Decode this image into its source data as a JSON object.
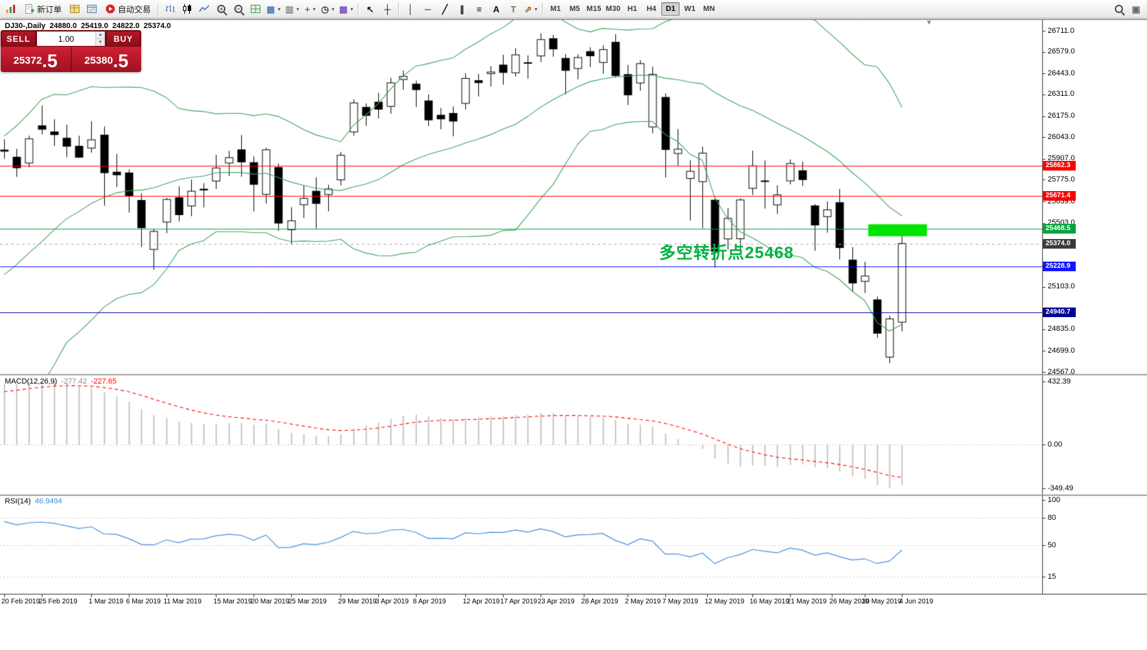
{
  "toolbar": {
    "timeframes": [
      "M1",
      "M5",
      "M15",
      "M30",
      "H1",
      "H4",
      "D1",
      "W1",
      "MN"
    ],
    "active_timeframe": "D1",
    "items": [
      {
        "t": "logo",
        "n": "terminal-logo-icon"
      },
      {
        "t": "labeled",
        "n": "new-order-button",
        "sv": "neworder",
        "l": "新订单"
      },
      {
        "t": "svg",
        "n": "market-watch-icon",
        "sv": "mw"
      },
      {
        "t": "svg",
        "n": "data-window-icon",
        "sv": "dw"
      },
      {
        "t": "labeled",
        "n": "autotrading-button",
        "sv": "auto",
        "l": "自动交易"
      },
      {
        "t": "sep"
      },
      {
        "t": "svg",
        "n": "bar-chart-mode-icon",
        "sv": "bars"
      },
      {
        "t": "svg",
        "n": "candlestick-mode-icon",
        "sv": "candles"
      },
      {
        "t": "svg",
        "n": "line-chart-mode-icon",
        "sv": "line"
      },
      {
        "t": "mag",
        "n": "zoom-in-button",
        "s": "+"
      },
      {
        "t": "mag",
        "n": "zoom-out-button",
        "s": "−"
      },
      {
        "t": "svg",
        "n": "tile-windows-icon",
        "sv": "grid"
      },
      {
        "t": "icon",
        "n": "new-chart-button",
        "g": "▦",
        "c": "#4f81bd",
        "dd": 1
      },
      {
        "t": "icon",
        "n": "profiles-button",
        "g": "▥",
        "c": "#8a8a8a",
        "dd": 1
      },
      {
        "t": "icon",
        "n": "indicators-button",
        "g": "+",
        "c": "#1f9d3a",
        "dd": 1
      },
      {
        "t": "icon",
        "n": "periods-button",
        "g": "◷",
        "c": "#3a3a3a",
        "dd": 1
      },
      {
        "t": "icon",
        "n": "templates-button",
        "g": "▩",
        "c": "#7e57c2",
        "dd": 1
      },
      {
        "t": "sep"
      },
      {
        "t": "icon",
        "n": "cursor-button",
        "g": "↖",
        "c": "#111111"
      },
      {
        "t": "icon",
        "n": "crosshair-button",
        "g": "┼",
        "c": "#111111"
      },
      {
        "t": "sep"
      },
      {
        "t": "icon",
        "n": "vertical-line-button",
        "g": "│",
        "c": "#111111"
      },
      {
        "t": "icon",
        "n": "horizontal-line-button",
        "g": "─",
        "c": "#111111"
      },
      {
        "t": "icon",
        "n": "trendline-button",
        "g": "╱",
        "c": "#111111"
      },
      {
        "t": "icon",
        "n": "equidistant-channel-button",
        "g": "∥",
        "c": "#111111"
      },
      {
        "t": "icon",
        "n": "fibonacci-button",
        "g": "≡",
        "c": "#111111"
      },
      {
        "t": "icon",
        "n": "text-button",
        "g": "A",
        "c": "#111111"
      },
      {
        "t": "icon",
        "n": "text-label-button",
        "g": "T",
        "c": "#777777"
      },
      {
        "t": "icon",
        "n": "arrows-button",
        "g": "⇗",
        "c": "#a8671f",
        "dd": 1
      },
      {
        "t": "sep"
      },
      {
        "t": "tfgroup"
      },
      {
        "t": "spacer"
      },
      {
        "t": "mag",
        "n": "search-icon",
        "s": ""
      },
      {
        "t": "icon",
        "n": "sidebar-toggle-icon",
        "g": "▣",
        "c": "#666666"
      }
    ]
  },
  "chart": {
    "symbol": "DJ30-,Daily",
    "open": "24880.0",
    "high": "25419.0",
    "low": "24822.0",
    "close": "25374.0"
  },
  "trade_panel": {
    "sell_label": "SELL",
    "buy_label": "BUY",
    "volume": "1.00",
    "sell_price": {
      "main": "25372",
      "frac": ".5"
    },
    "buy_price": {
      "main": "25380",
      "frac": ".5"
    },
    "colors": {
      "header": "#b01825",
      "header_dark": "#8a0e19",
      "price_bg": "#d01f33",
      "price_bg_dark": "#a01221"
    }
  },
  "annotation": {
    "text": "多空转折点25468",
    "color": "#00b044"
  },
  "icons": {
    "shift_marker": "▼",
    "spinner_up": "▲",
    "spinner_down": "▼"
  },
  "macd_panel": {
    "name": "MACD(12,26,9)",
    "value_macd": "-277.42",
    "value_signal": "-227.65"
  },
  "rsi_panel": {
    "name": "RSI(14)",
    "value": "46.9494"
  },
  "chart_data": {
    "type": "candlestick",
    "symbol": "DJ30-",
    "timeframe": "Daily",
    "price_range": [
      24567,
      26711
    ],
    "price_ticks": [
      "26711.0",
      "26579.0",
      "26443.0",
      "26311.0",
      "26175.0",
      "26043.0",
      "25907.0",
      "25775.0",
      "25639.0",
      "25503.0",
      "25103.0",
      "24835.0",
      "24699.0",
      "24567.0"
    ],
    "macd_ticks": [
      "432.39",
      "0.00",
      "-349.49"
    ],
    "rsi_ticks": [
      "100",
      "80",
      "50",
      "15"
    ],
    "hlines": [
      {
        "price": 25862.3,
        "label": "25862.3",
        "color": "#ff0000"
      },
      {
        "price": 25671.4,
        "label": "25671.4",
        "color": "#ff0000"
      },
      {
        "price": 25468.5,
        "label": "25468.5",
        "color": "#00a63c"
      },
      {
        "price": 25228.9,
        "label": "25228.9",
        "color": "#1414ff"
      },
      {
        "price": 24940.7,
        "label": "24940.7",
        "color": "#000096"
      }
    ],
    "current_price": {
      "value": 25374.0,
      "label": "25374.0",
      "color": "#3c3c3c"
    },
    "rectangle": {
      "i1": 69.3,
      "i2": 74.0,
      "p1": 25420,
      "p2": 25495,
      "color": "#00e400"
    },
    "time_labels": [
      [
        "20 Feb 2019",
        0
      ],
      [
        "25 Feb 2019",
        3
      ],
      [
        "1 Mar 2019",
        7
      ],
      [
        "6 Mar 2019",
        10
      ],
      [
        "11 Mar 2019",
        13
      ],
      [
        "15 Mar 2019",
        17
      ],
      [
        "20 Mar 2019",
        20
      ],
      [
        "25 Mar 2019",
        23
      ],
      [
        "29 Mar 2019",
        27
      ],
      [
        "3 Apr 2019",
        30
      ],
      [
        "8 Apr 2019",
        33
      ],
      [
        "12 Apr 2019",
        37
      ],
      [
        "17 Apr 2019",
        40
      ],
      [
        "23 Apr 2019",
        43
      ],
      [
        "28 Apr 2019",
        46.5
      ],
      [
        "2 May 2019",
        50
      ],
      [
        "7 May 2019",
        53
      ],
      [
        "12 May 2019",
        56.4
      ],
      [
        "16 May 2019",
        60
      ],
      [
        "21 May 2019",
        63
      ],
      [
        "26 May 2019",
        66.4
      ],
      [
        "30 May 2019",
        69
      ],
      [
        "4 Jun 2019",
        72
      ]
    ],
    "history_closes": [
      23787,
      23879,
      24002,
      23996,
      23910,
      24066,
      24207,
      24370,
      24706,
      24404,
      24576,
      24553,
      24737,
      24528,
      24580,
      25014,
      25000,
      25064,
      25239,
      25411,
      25390,
      25170,
      25106,
      25053,
      25425,
      25543,
      25439,
      25883,
      25891
    ],
    "candles": [
      [
        25962,
        26029,
        25907,
        25954
      ],
      [
        25917,
        25969,
        25793,
        25850
      ],
      [
        25880,
        26052,
        25853,
        26032
      ],
      [
        26114,
        26241,
        26060,
        26092
      ],
      [
        26076,
        26155,
        25987,
        26058
      ],
      [
        26036,
        26121,
        25916,
        25985
      ],
      [
        25986,
        26051,
        25913,
        25916
      ],
      [
        25974,
        26143,
        25945,
        26026
      ],
      [
        26056,
        26110,
        25612,
        25819
      ],
      [
        25823,
        25938,
        25730,
        25806
      ],
      [
        25818,
        25840,
        25569,
        25673
      ],
      [
        25645,
        25689,
        25352,
        25473
      ],
      [
        25337,
        25466,
        25209,
        25450
      ],
      [
        25509,
        25661,
        25439,
        25651
      ],
      [
        25662,
        25734,
        25512,
        25555
      ],
      [
        25610,
        25776,
        25546,
        25703
      ],
      [
        25716,
        25753,
        25601,
        25710
      ],
      [
        25767,
        25932,
        25717,
        25849
      ],
      [
        25880,
        25956,
        25798,
        25914
      ],
      [
        25963,
        26056,
        25794,
        25887
      ],
      [
        25883,
        25922,
        25576,
        25746
      ],
      [
        25683,
        25977,
        25625,
        25963
      ],
      [
        25852,
        25877,
        25454,
        25502
      ],
      [
        25461,
        25603,
        25372,
        25517
      ],
      [
        25618,
        25739,
        25534,
        25658
      ],
      [
        25703,
        25790,
        25468,
        25626
      ],
      [
        25682,
        25743,
        25576,
        25717
      ],
      [
        25774,
        25950,
        25740,
        25929
      ],
      [
        26075,
        26280,
        26051,
        26258
      ],
      [
        26230,
        26255,
        26113,
        26179
      ],
      [
        26263,
        26321,
        26160,
        26218
      ],
      [
        26236,
        26416,
        26190,
        26384
      ],
      [
        26405,
        26461,
        26340,
        26425
      ],
      [
        26376,
        26398,
        26232,
        26341
      ],
      [
        26271,
        26311,
        26113,
        26151
      ],
      [
        26181,
        26226,
        26092,
        26157
      ],
      [
        26192,
        26236,
        26048,
        26143
      ],
      [
        26255,
        26444,
        26216,
        26412
      ],
      [
        26398,
        26440,
        26298,
        26385
      ],
      [
        26442,
        26488,
        26361,
        26452
      ],
      [
        26496,
        26560,
        26372,
        26449
      ],
      [
        26447,
        26602,
        26423,
        26560
      ],
      [
        26511,
        26557,
        26411,
        26511
      ],
      [
        26553,
        26695,
        26515,
        26656
      ],
      [
        26662,
        26686,
        26548,
        26597
      ],
      [
        26538,
        26565,
        26311,
        26462
      ],
      [
        26474,
        26563,
        26406,
        26543
      ],
      [
        26581,
        26608,
        26483,
        26554
      ],
      [
        26512,
        26621,
        26441,
        26593
      ],
      [
        26639,
        26690,
        26417,
        26430
      ],
      [
        26436,
        26497,
        26245,
        26308
      ],
      [
        26383,
        26526,
        26335,
        26505
      ],
      [
        26107,
        26486,
        26067,
        26438
      ],
      [
        26293,
        26318,
        25789,
        25965
      ],
      [
        25940,
        26093,
        25864,
        25967
      ],
      [
        25783,
        25898,
        25518,
        25828
      ],
      [
        25763,
        25984,
        25470,
        25942
      ],
      [
        25647,
        25667,
        25222,
        25325
      ],
      [
        25403,
        25596,
        25336,
        25532
      ],
      [
        25404,
        25658,
        25314,
        25648
      ],
      [
        25721,
        25958,
        25679,
        25862
      ],
      [
        25768,
        25897,
        25594,
        25764
      ],
      [
        25617,
        25740,
        25560,
        25680
      ],
      [
        25768,
        25903,
        25746,
        25877
      ],
      [
        25832,
        25889,
        25735,
        25776
      ],
      [
        25611,
        25622,
        25329,
        25490
      ],
      [
        25543,
        25638,
        25442,
        25586
      ],
      [
        25631,
        25717,
        25274,
        25348
      ],
      [
        25270,
        25352,
        25072,
        25126
      ],
      [
        25136,
        25260,
        25063,
        25170
      ],
      [
        25020,
        25040,
        24780,
        24810
      ],
      [
        24660,
        24920,
        24622,
        24900
      ],
      [
        24880,
        25419,
        24822,
        25374
      ]
    ],
    "indicators": {
      "bollinger": {
        "period": 20,
        "deviation": 2,
        "color": "#3aa35a"
      },
      "macd": {
        "fast": 12,
        "slow": 26,
        "signal": 9,
        "histogram_color": "#b9b9b9",
        "signal_color": "#ff0000"
      },
      "rsi": {
        "period": 14,
        "color": "#3f8ce0",
        "levels": [
          80,
          50,
          15
        ]
      }
    }
  }
}
